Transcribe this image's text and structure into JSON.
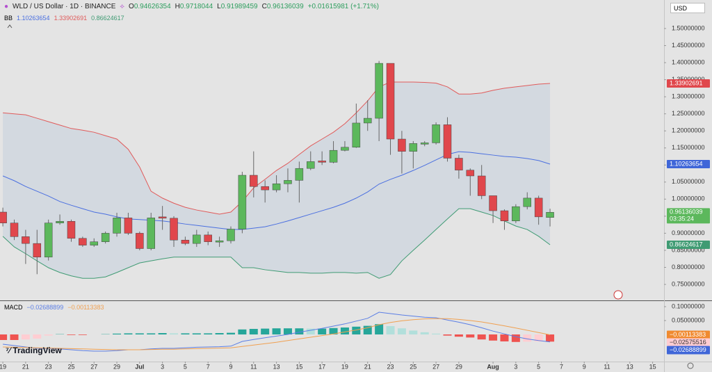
{
  "header": {
    "symbol": "WLD / US Dollar · 1D · BINANCE",
    "ohlc_labels": [
      "O",
      "H",
      "L",
      "C"
    ],
    "change": "+0.01615981 (+1.71%)",
    "currency": "USD",
    "brand": "TradingView"
  },
  "chart_data": [
    {
      "type": "candlestick",
      "indicator": "BB",
      "x": [
        0,
        1,
        2,
        3,
        4,
        5,
        6,
        7,
        8,
        9,
        10,
        11,
        12,
        13,
        14,
        15,
        16,
        17,
        18,
        19,
        20,
        21,
        22,
        23,
        24,
        25,
        26,
        27,
        28,
        29,
        30,
        31,
        32,
        33,
        34,
        35,
        36,
        37,
        38,
        39,
        40,
        41,
        42,
        43,
        44,
        45,
        46,
        47,
        48
      ],
      "open": [
        0.962,
        0.93,
        0.89,
        0.87,
        0.83,
        0.93,
        0.935,
        0.885,
        0.865,
        0.875,
        0.9,
        0.945,
        0.9,
        0.855,
        0.948,
        0.944,
        0.88,
        0.87,
        0.895,
        0.874,
        0.878,
        0.912,
        1.07,
        1.037,
        1.027,
        1.045,
        1.055,
        1.09,
        1.112,
        1.108,
        1.143,
        1.152,
        1.223,
        1.237,
        1.398,
        1.176,
        1.14,
        1.161,
        1.165,
        1.218,
        1.12,
        1.085,
        1.068,
        1.01,
        0.966,
        0.936,
        0.978,
        1.003,
        0.94626354
      ],
      "high": [
        0.975,
        0.94,
        0.91,
        0.91,
        0.94,
        0.955,
        0.94,
        0.89,
        0.885,
        0.905,
        0.96,
        0.96,
        0.905,
        0.96,
        0.98,
        0.95,
        0.89,
        0.91,
        0.905,
        0.89,
        0.92,
        1.08,
        1.14,
        1.055,
        1.07,
        1.09,
        1.11,
        1.14,
        1.14,
        1.17,
        1.17,
        1.28,
        1.29,
        1.405,
        1.398,
        1.2,
        1.17,
        1.17,
        1.225,
        1.24,
        1.13,
        1.09,
        1.1,
        1.01,
        0.97,
        0.985,
        1.02,
        1.01,
        0.9718044
      ],
      "low": [
        0.92,
        0.88,
        0.81,
        0.78,
        0.82,
        0.925,
        0.875,
        0.86,
        0.86,
        0.87,
        0.89,
        0.895,
        0.85,
        0.85,
        0.91,
        0.86,
        0.865,
        0.86,
        0.865,
        0.86,
        0.87,
        0.9,
        1.005,
        0.99,
        1.02,
        1.02,
        0.99,
        1.085,
        1.1,
        1.105,
        1.14,
        1.15,
        1.2,
        1.17,
        1.13,
        1.075,
        1.09,
        1.155,
        1.16,
        1.11,
        1.06,
        1.01,
        1.0,
        0.93,
        0.91,
        0.93,
        0.97,
        0.925,
        0.91989459
      ],
      "close": [
        0.93,
        0.89,
        0.87,
        0.83,
        0.93,
        0.935,
        0.885,
        0.865,
        0.875,
        0.9,
        0.945,
        0.9,
        0.855,
        0.945,
        0.944,
        0.88,
        0.87,
        0.895,
        0.875,
        0.878,
        0.912,
        1.07,
        1.037,
        1.027,
        1.045,
        1.055,
        1.09,
        1.11,
        1.108,
        1.143,
        1.152,
        1.223,
        1.237,
        1.398,
        1.176,
        1.14,
        1.163,
        1.165,
        1.218,
        1.12,
        1.085,
        1.068,
        1.01,
        0.966,
        0.936,
        0.978,
        1.003,
        0.948,
        0.96136039
      ],
      "up_color": "#5cb85c",
      "down_color": "#e0474c",
      "series": [
        {
          "color": "#4a6fe0",
          "values": [
            1.068,
            1.054,
            1.037,
            1.023,
            1.009,
            0.993,
            0.982,
            0.972,
            0.962,
            0.956,
            0.948,
            0.942,
            0.94,
            0.938,
            0.936,
            0.932,
            0.927,
            0.923,
            0.919,
            0.915,
            0.911,
            0.911,
            0.915,
            0.919,
            0.927,
            0.936,
            0.946,
            0.956,
            0.966,
            0.976,
            0.988,
            1.003,
            1.021,
            1.044,
            1.058,
            1.07,
            1.084,
            1.099,
            1.115,
            1.131,
            1.139,
            1.137,
            1.133,
            1.129,
            1.125,
            1.123,
            1.119,
            1.113,
            1.10263654
          ]
        },
        {
          "color": "#e05a5a",
          "values": [
            1.253,
            1.25,
            1.247,
            1.237,
            1.227,
            1.217,
            1.207,
            1.202,
            1.196,
            1.186,
            1.176,
            1.146,
            1.094,
            1.023,
            1.003,
            0.988,
            0.976,
            0.968,
            0.962,
            0.956,
            0.962,
            0.993,
            1.033,
            1.058,
            1.084,
            1.105,
            1.131,
            1.156,
            1.176,
            1.196,
            1.221,
            1.253,
            1.288,
            1.329,
            1.343,
            1.343,
            1.343,
            1.342,
            1.34,
            1.329,
            1.308,
            1.308,
            1.311,
            1.319,
            1.325,
            1.329,
            1.333,
            1.337,
            1.33902691
          ]
        },
        {
          "color": "#3f9b73",
          "values": [
            0.891,
            0.86,
            0.84,
            0.819,
            0.799,
            0.785,
            0.775,
            0.768,
            0.768,
            0.772,
            0.785,
            0.799,
            0.813,
            0.819,
            0.825,
            0.83,
            0.83,
            0.83,
            0.83,
            0.83,
            0.83,
            0.799,
            0.799,
            0.793,
            0.789,
            0.785,
            0.785,
            0.783,
            0.783,
            0.785,
            0.785,
            0.783,
            0.785,
            0.768,
            0.779,
            0.819,
            0.85,
            0.88,
            0.911,
            0.942,
            0.972,
            0.972,
            0.962,
            0.952,
            0.936,
            0.921,
            0.911,
            0.891,
            0.86624617
          ]
        }
      ],
      "band_fill": "#d3d9e0",
      "countdown": "03:35:24",
      "ylim": [
        0.7032,
        1.5836
      ],
      "yticks": [
        {
          "value": 1.5,
          "label": "1.50000000"
        },
        {
          "value": 1.45,
          "label": "1.45000000"
        },
        {
          "value": 1.4,
          "label": "1.40000000"
        },
        {
          "value": 1.35,
          "label": "1.35000000"
        },
        {
          "value": 1.3,
          "label": "1.30000000"
        },
        {
          "value": 1.25,
          "label": "1.25000000"
        },
        {
          "value": 1.2,
          "label": "1.20000000"
        },
        {
          "value": 1.15,
          "label": "1.15000000"
        },
        {
          "value": 1.1,
          "label": "1.10000000"
        },
        {
          "value": 1.05,
          "label": "1.05000000"
        },
        {
          "value": 1.0,
          "label": "1.00000000"
        },
        {
          "value": 0.95,
          "label": "0.95000000"
        },
        {
          "value": 0.9,
          "label": "0.90000000"
        },
        {
          "value": 0.85,
          "label": "0.85000000"
        },
        {
          "value": 0.8,
          "label": "0.80000000"
        },
        {
          "value": 0.75,
          "label": "0.75000000"
        }
      ],
      "xlim": [
        -0.25,
        58
      ],
      "xticks": [
        {
          "value": 0,
          "label": "19"
        },
        {
          "value": 2,
          "label": "21"
        },
        {
          "value": 4,
          "label": "23"
        },
        {
          "value": 6,
          "label": "25"
        },
        {
          "value": 8,
          "label": "27"
        },
        {
          "value": 10,
          "label": "29"
        },
        {
          "value": 12,
          "label": "Jul"
        },
        {
          "value": 14,
          "label": "3"
        },
        {
          "value": 16,
          "label": "5"
        },
        {
          "value": 18,
          "label": "7"
        },
        {
          "value": 20,
          "label": "9"
        },
        {
          "value": 22,
          "label": "11"
        },
        {
          "value": 24,
          "label": "13"
        },
        {
          "value": 26,
          "label": "15"
        },
        {
          "value": 28,
          "label": "17"
        },
        {
          "value": 30,
          "label": "19"
        },
        {
          "value": 32,
          "label": "21"
        },
        {
          "value": 34,
          "label": "23"
        },
        {
          "value": 36,
          "label": "25"
        },
        {
          "value": 38,
          "label": "27"
        },
        {
          "value": 40,
          "label": "29"
        },
        {
          "value": 43,
          "label": "Aug"
        },
        {
          "value": 45,
          "label": "3"
        },
        {
          "value": 47,
          "label": "5"
        },
        {
          "value": 49,
          "label": "7"
        },
        {
          "value": 51,
          "label": "9"
        },
        {
          "value": 53,
          "label": "11"
        },
        {
          "value": 55,
          "label": "13"
        },
        {
          "value": 57,
          "label": "15"
        }
      ]
    },
    {
      "type": "macd",
      "title": "MACD",
      "series": [
        {
          "color": "#5b7ee5",
          "last_label": "−0.02688899",
          "values": [
            -0.035,
            -0.04,
            -0.045,
            -0.05,
            -0.05,
            -0.052,
            -0.055,
            -0.058,
            -0.06,
            -0.06,
            -0.058,
            -0.055,
            -0.055,
            -0.052,
            -0.05,
            -0.05,
            -0.048,
            -0.046,
            -0.045,
            -0.044,
            -0.042,
            -0.025,
            -0.018,
            -0.012,
            -0.006,
            0,
            0.008,
            0.015,
            0.022,
            0.03,
            0.038,
            0.048,
            0.058,
            0.08,
            0.075,
            0.07,
            0.066,
            0.062,
            0.06,
            0.052,
            0.044,
            0.035,
            0.024,
            0.012,
            0.002,
            -0.008,
            -0.016,
            -0.022,
            -0.02688899
          ]
        },
        {
          "color": "#f0a050",
          "last_label": "−0.00113383",
          "values": [
            -0.045,
            -0.046,
            -0.047,
            -0.048,
            -0.049,
            -0.05,
            -0.051,
            -0.052,
            -0.053,
            -0.054,
            -0.055,
            -0.055,
            -0.055,
            -0.054,
            -0.053,
            -0.053,
            -0.052,
            -0.051,
            -0.05,
            -0.049,
            -0.048,
            -0.043,
            -0.038,
            -0.033,
            -0.028,
            -0.022,
            -0.016,
            -0.01,
            -0.004,
            0.002,
            0.009,
            0.016,
            0.024,
            0.035,
            0.043,
            0.049,
            0.053,
            0.056,
            0.057,
            0.057,
            0.054,
            0.05,
            0.045,
            0.038,
            0.031,
            0.023,
            0.015,
            0.007,
            -0.00113383
          ]
        }
      ],
      "histogram": {
        "last_label": "−0.02575516",
        "values": [
          -0.02,
          -0.02,
          -0.018,
          -0.015,
          -0.004,
          0.001,
          -0.002,
          -0.002,
          0,
          0.001,
          0.003,
          0.004,
          0.004,
          0.004,
          0.005,
          0.004,
          0.004,
          0.004,
          0.004,
          0.005,
          0.006,
          0.018,
          0.02,
          0.021,
          0.022,
          0.022,
          0.022,
          0.021,
          0.021,
          0.023,
          0.025,
          0.028,
          0.031,
          0.037,
          0.03,
          0.022,
          0.014,
          0.008,
          0.003,
          -0.004,
          -0.008,
          -0.011,
          -0.018,
          -0.022,
          -0.025,
          -0.027,
          -0.026,
          -0.025,
          -0.02575516
        ],
        "colors": [
          "#26a69a",
          "#b2dfdb",
          "#ef5350",
          "#ffcdd2"
        ]
      },
      "ylim": [
        -0.0975,
        0.12
      ],
      "yticks": [
        {
          "value": 0.1,
          "label": "0.10000000"
        },
        {
          "value": 0.05,
          "label": "0.05000000"
        }
      ]
    }
  ]
}
